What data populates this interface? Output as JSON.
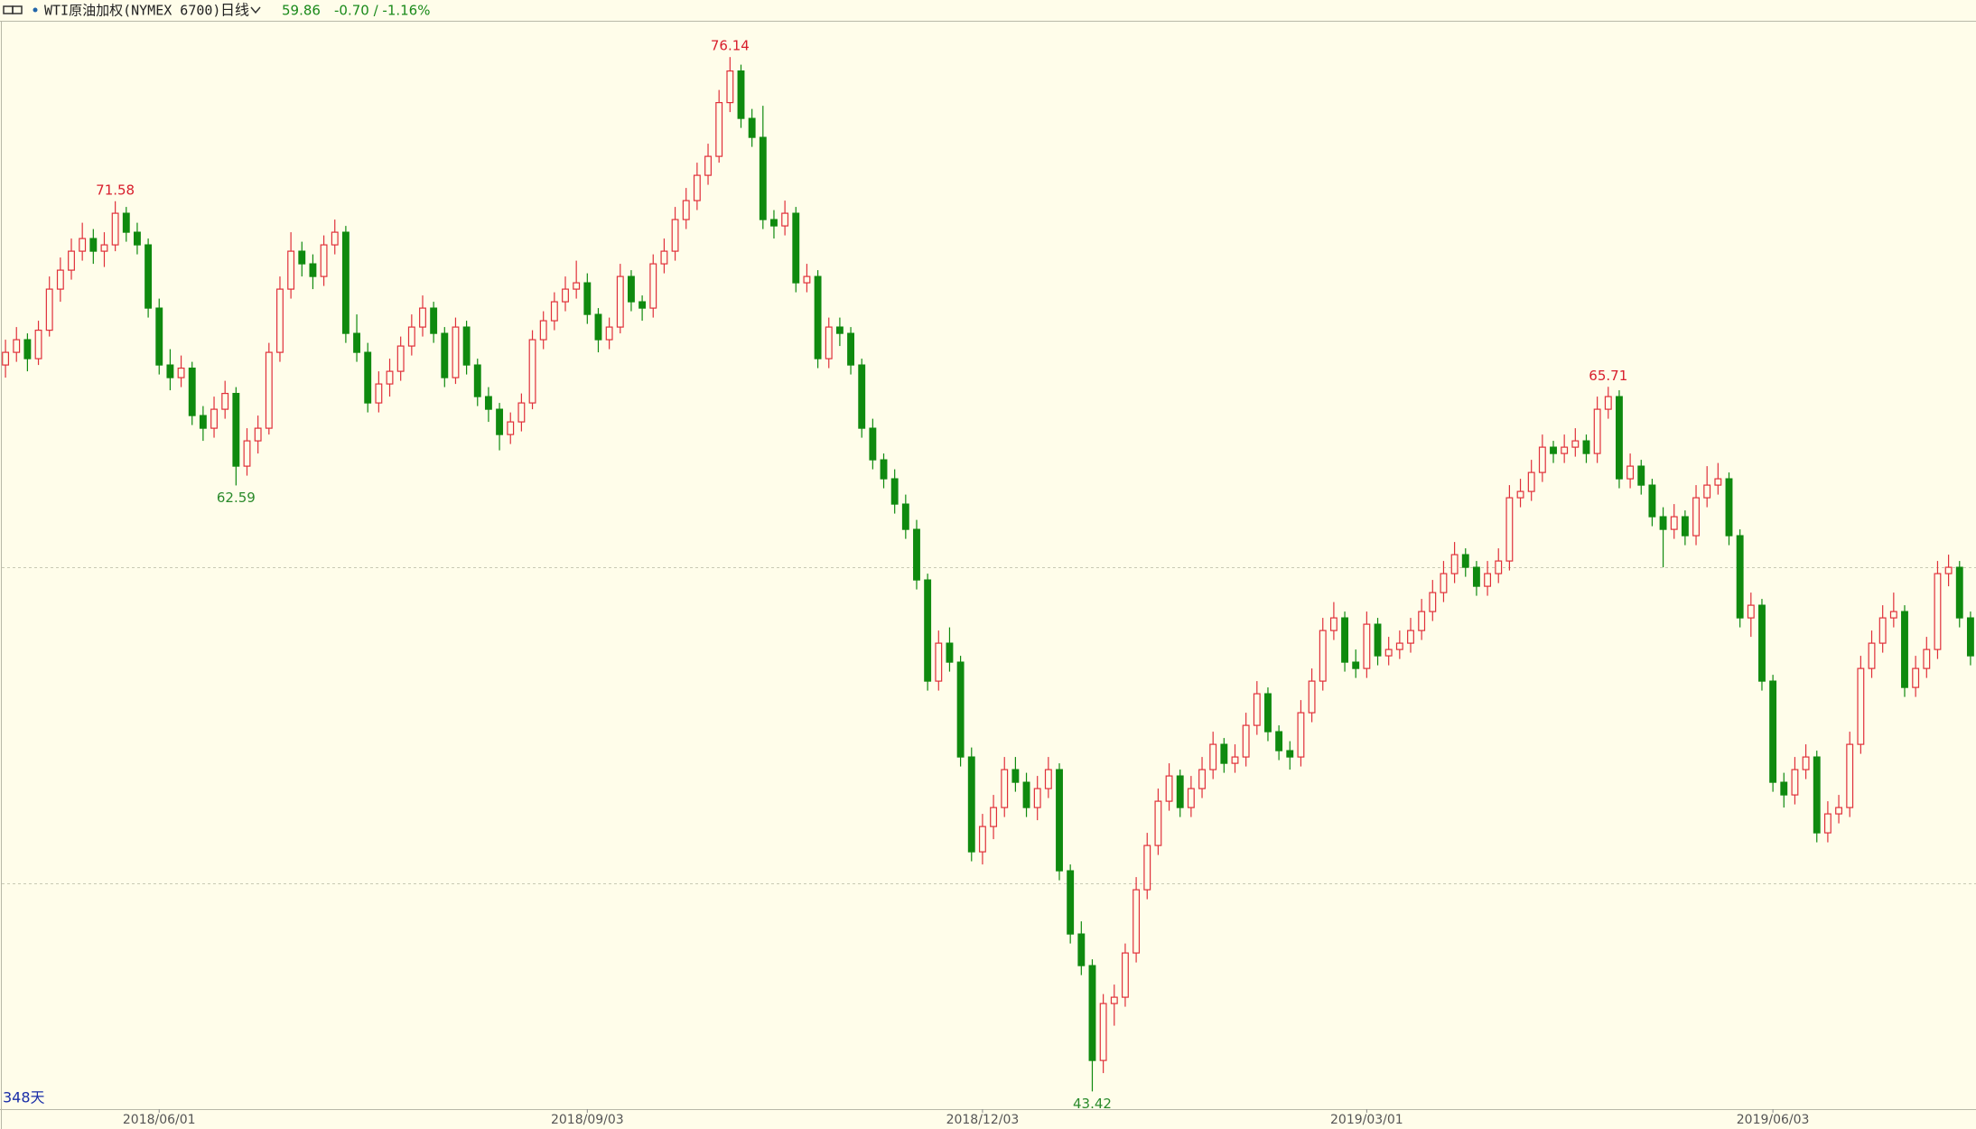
{
  "header": {
    "icon_text": "WTI原油加权(NYMEX 6700)",
    "period": "日线",
    "last": "59.86",
    "change": "-0.70 / -1.16%"
  },
  "chart_data": {
    "type": "candlestick",
    "day_count": "348天",
    "ylim": [
      42.86,
      77.26
    ],
    "gridlines": [
      50,
      60
    ],
    "up_color": "#e0303a",
    "down_color": "#0f8a0f",
    "high_label_color": "#d81e2c",
    "low_label_color": "#2a8a2a",
    "annotated_highs": [
      10,
      66,
      146
    ],
    "annotated_lows": [
      21,
      99
    ],
    "x_labels": [
      {
        "index": 14,
        "label": "2018/06/01"
      },
      {
        "index": 53,
        "label": "2018/09/03"
      },
      {
        "index": 89,
        "label": "2018/12/03"
      },
      {
        "index": 124,
        "label": "2019/03/01"
      },
      {
        "index": 161,
        "label": "2019/06/03"
      }
    ],
    "ohlc": [
      [
        66.4,
        67.2,
        66.0,
        66.8
      ],
      [
        66.8,
        67.6,
        66.5,
        67.2
      ],
      [
        67.2,
        67.4,
        66.2,
        66.6
      ],
      [
        66.6,
        67.8,
        66.4,
        67.5
      ],
      [
        67.5,
        69.2,
        67.3,
        68.8
      ],
      [
        68.8,
        69.8,
        68.4,
        69.4
      ],
      [
        69.4,
        70.4,
        69.1,
        70.0
      ],
      [
        70.0,
        70.9,
        69.7,
        70.4
      ],
      [
        70.4,
        70.7,
        69.6,
        70.0
      ],
      [
        70.0,
        70.6,
        69.5,
        70.2
      ],
      [
        70.2,
        71.58,
        70.0,
        71.2
      ],
      [
        71.2,
        71.4,
        70.3,
        70.6
      ],
      [
        70.6,
        70.9,
        69.9,
        70.2
      ],
      [
        70.2,
        70.4,
        67.9,
        68.2
      ],
      [
        68.2,
        68.5,
        66.1,
        66.4
      ],
      [
        66.4,
        66.9,
        65.6,
        66.0
      ],
      [
        66.0,
        66.7,
        65.7,
        66.3
      ],
      [
        66.3,
        66.5,
        64.5,
        64.8
      ],
      [
        64.8,
        65.1,
        64.0,
        64.4
      ],
      [
        64.4,
        65.4,
        64.1,
        65.0
      ],
      [
        65.0,
        65.9,
        64.7,
        65.5
      ],
      [
        65.5,
        65.7,
        62.59,
        63.2
      ],
      [
        63.2,
        64.4,
        62.9,
        64.0
      ],
      [
        64.0,
        64.8,
        63.6,
        64.4
      ],
      [
        64.4,
        67.1,
        64.2,
        66.8
      ],
      [
        66.8,
        69.2,
        66.5,
        68.8
      ],
      [
        68.8,
        70.6,
        68.5,
        70.0
      ],
      [
        70.0,
        70.3,
        69.2,
        69.6
      ],
      [
        69.6,
        69.9,
        68.8,
        69.2
      ],
      [
        69.2,
        70.5,
        68.9,
        70.2
      ],
      [
        70.2,
        71.0,
        69.9,
        70.6
      ],
      [
        70.6,
        70.8,
        67.1,
        67.4
      ],
      [
        67.4,
        68.0,
        66.5,
        66.8
      ],
      [
        66.8,
        67.1,
        64.9,
        65.2
      ],
      [
        65.2,
        66.2,
        64.9,
        65.8
      ],
      [
        65.8,
        66.6,
        65.4,
        66.2
      ],
      [
        66.2,
        67.3,
        65.9,
        67.0
      ],
      [
        67.0,
        68.0,
        66.7,
        67.6
      ],
      [
        67.6,
        68.6,
        67.3,
        68.2
      ],
      [
        68.2,
        68.4,
        67.1,
        67.4
      ],
      [
        67.4,
        67.6,
        65.7,
        66.0
      ],
      [
        66.0,
        67.9,
        65.8,
        67.6
      ],
      [
        67.6,
        67.8,
        66.1,
        66.4
      ],
      [
        66.4,
        66.6,
        65.1,
        65.4
      ],
      [
        65.4,
        65.7,
        64.6,
        65.0
      ],
      [
        65.0,
        65.2,
        63.7,
        64.2
      ],
      [
        64.2,
        64.9,
        63.9,
        64.6
      ],
      [
        64.6,
        65.5,
        64.3,
        65.2
      ],
      [
        65.2,
        67.5,
        65.0,
        67.2
      ],
      [
        67.2,
        68.1,
        66.9,
        67.8
      ],
      [
        67.8,
        68.7,
        67.5,
        68.4
      ],
      [
        68.4,
        69.2,
        68.1,
        68.8
      ],
      [
        68.8,
        69.7,
        68.5,
        69.0
      ],
      [
        69.0,
        69.3,
        67.7,
        68.0
      ],
      [
        68.0,
        68.2,
        66.8,
        67.2
      ],
      [
        67.2,
        67.9,
        66.9,
        67.6
      ],
      [
        67.6,
        69.6,
        67.4,
        69.2
      ],
      [
        69.2,
        69.4,
        68.1,
        68.4
      ],
      [
        68.4,
        68.6,
        67.8,
        68.2
      ],
      [
        68.2,
        69.9,
        67.9,
        69.6
      ],
      [
        69.6,
        70.4,
        69.3,
        70.0
      ],
      [
        70.0,
        71.4,
        69.7,
        71.0
      ],
      [
        71.0,
        72.0,
        70.7,
        71.6
      ],
      [
        71.6,
        72.8,
        71.3,
        72.4
      ],
      [
        72.4,
        73.4,
        72.1,
        73.0
      ],
      [
        73.0,
        75.1,
        72.8,
        74.7
      ],
      [
        74.7,
        76.14,
        74.4,
        75.7
      ],
      [
        75.7,
        75.9,
        73.9,
        74.2
      ],
      [
        74.2,
        74.5,
        73.3,
        73.6
      ],
      [
        73.6,
        74.6,
        70.7,
        71.0
      ],
      [
        71.0,
        71.3,
        70.4,
        70.8
      ],
      [
        70.8,
        71.6,
        70.5,
        71.2
      ],
      [
        71.2,
        71.4,
        68.7,
        69.0
      ],
      [
        69.0,
        69.6,
        68.7,
        69.2
      ],
      [
        69.2,
        69.4,
        66.3,
        66.6
      ],
      [
        66.6,
        67.9,
        66.3,
        67.6
      ],
      [
        67.6,
        67.9,
        67.0,
        67.4
      ],
      [
        67.4,
        67.6,
        66.1,
        66.4
      ],
      [
        66.4,
        66.6,
        64.1,
        64.4
      ],
      [
        64.4,
        64.7,
        63.1,
        63.4
      ],
      [
        63.4,
        63.6,
        62.5,
        62.8
      ],
      [
        62.8,
        63.1,
        61.7,
        62.0
      ],
      [
        62.0,
        62.3,
        60.9,
        61.2
      ],
      [
        61.2,
        61.5,
        59.3,
        59.6
      ],
      [
        59.6,
        59.8,
        56.1,
        56.4
      ],
      [
        56.4,
        58.0,
        56.1,
        57.6
      ],
      [
        57.6,
        58.1,
        56.7,
        57.0
      ],
      [
        57.0,
        57.2,
        53.7,
        54.0
      ],
      [
        54.0,
        54.3,
        50.7,
        51.0
      ],
      [
        51.0,
        52.2,
        50.6,
        51.8
      ],
      [
        51.8,
        52.8,
        51.4,
        52.4
      ],
      [
        52.4,
        54.0,
        52.1,
        53.6
      ],
      [
        53.6,
        54.0,
        52.9,
        53.2
      ],
      [
        53.2,
        53.5,
        52.1,
        52.4
      ],
      [
        52.4,
        53.4,
        52.0,
        53.0
      ],
      [
        53.0,
        54.0,
        52.7,
        53.6
      ],
      [
        53.6,
        53.8,
        50.1,
        50.4
      ],
      [
        50.4,
        50.6,
        48.1,
        48.4
      ],
      [
        48.4,
        48.8,
        47.1,
        47.4
      ],
      [
        47.4,
        47.6,
        43.42,
        44.4
      ],
      [
        44.4,
        46.5,
        44.0,
        46.2
      ],
      [
        46.2,
        46.8,
        45.5,
        46.4
      ],
      [
        46.4,
        48.1,
        46.1,
        47.8
      ],
      [
        47.8,
        50.2,
        47.5,
        49.8
      ],
      [
        49.8,
        51.6,
        49.5,
        51.2
      ],
      [
        51.2,
        53.0,
        50.9,
        52.6
      ],
      [
        52.6,
        53.8,
        52.3,
        53.4
      ],
      [
        53.4,
        53.6,
        52.1,
        52.4
      ],
      [
        52.4,
        53.4,
        52.1,
        53.0
      ],
      [
        53.0,
        54.0,
        52.7,
        53.6
      ],
      [
        53.6,
        54.8,
        53.3,
        54.4
      ],
      [
        54.4,
        54.6,
        53.5,
        53.8
      ],
      [
        53.8,
        54.4,
        53.5,
        54.0
      ],
      [
        54.0,
        55.4,
        53.7,
        55.0
      ],
      [
        55.0,
        56.4,
        54.7,
        56.0
      ],
      [
        56.0,
        56.2,
        54.5,
        54.8
      ],
      [
        54.8,
        55.0,
        53.9,
        54.2
      ],
      [
        54.2,
        54.5,
        53.6,
        54.0
      ],
      [
        54.0,
        55.8,
        53.7,
        55.4
      ],
      [
        55.4,
        56.8,
        55.1,
        56.4
      ],
      [
        56.4,
        58.4,
        56.1,
        58.0
      ],
      [
        58.0,
        58.9,
        57.7,
        58.4
      ],
      [
        58.4,
        58.6,
        56.7,
        57.0
      ],
      [
        57.0,
        57.4,
        56.5,
        56.8
      ],
      [
        56.8,
        58.6,
        56.5,
        58.2
      ],
      [
        58.2,
        58.4,
        56.9,
        57.2
      ],
      [
        57.2,
        57.8,
        56.9,
        57.4
      ],
      [
        57.4,
        58.0,
        57.1,
        57.6
      ],
      [
        57.6,
        58.4,
        57.3,
        58.0
      ],
      [
        58.0,
        59.0,
        57.7,
        58.6
      ],
      [
        58.6,
        59.6,
        58.3,
        59.2
      ],
      [
        59.2,
        60.2,
        58.9,
        59.8
      ],
      [
        59.8,
        60.8,
        59.5,
        60.4
      ],
      [
        60.4,
        60.6,
        59.7,
        60.0
      ],
      [
        60.0,
        60.2,
        59.1,
        59.4
      ],
      [
        59.4,
        60.2,
        59.1,
        59.8
      ],
      [
        59.8,
        60.6,
        59.5,
        60.2
      ],
      [
        60.2,
        62.6,
        59.9,
        62.2
      ],
      [
        62.2,
        62.8,
        61.9,
        62.4
      ],
      [
        62.4,
        63.4,
        62.1,
        63.0
      ],
      [
        63.0,
        64.2,
        62.7,
        63.8
      ],
      [
        63.8,
        64.0,
        63.3,
        63.6
      ],
      [
        63.6,
        64.2,
        63.3,
        63.8
      ],
      [
        63.8,
        64.4,
        63.5,
        64.0
      ],
      [
        64.0,
        64.2,
        63.3,
        63.6
      ],
      [
        63.6,
        65.4,
        63.3,
        65.0
      ],
      [
        65.0,
        65.71,
        64.7,
        65.4
      ],
      [
        65.4,
        65.6,
        62.5,
        62.8
      ],
      [
        62.8,
        63.6,
        62.5,
        63.2
      ],
      [
        63.2,
        63.4,
        62.3,
        62.6
      ],
      [
        62.6,
        62.8,
        61.3,
        61.6
      ],
      [
        61.6,
        61.9,
        60.0,
        61.2
      ],
      [
        61.2,
        62.0,
        60.9,
        61.6
      ],
      [
        61.6,
        61.8,
        60.7,
        61.0
      ],
      [
        61.0,
        62.6,
        60.7,
        62.2
      ],
      [
        62.2,
        63.2,
        61.9,
        62.6
      ],
      [
        62.6,
        63.3,
        62.3,
        62.8
      ],
      [
        62.8,
        63.0,
        60.7,
        61.0
      ],
      [
        61.0,
        61.2,
        58.1,
        58.4
      ],
      [
        58.4,
        59.2,
        57.8,
        58.8
      ],
      [
        58.8,
        59.0,
        56.1,
        56.4
      ],
      [
        56.4,
        56.6,
        52.9,
        53.2
      ],
      [
        53.2,
        53.5,
        52.4,
        52.8
      ],
      [
        52.8,
        54.0,
        52.5,
        53.6
      ],
      [
        53.6,
        54.4,
        53.3,
        54.0
      ],
      [
        54.0,
        54.2,
        51.3,
        51.6
      ],
      [
        51.6,
        52.6,
        51.3,
        52.2
      ],
      [
        52.2,
        52.8,
        51.9,
        52.4
      ],
      [
        52.4,
        54.8,
        52.1,
        54.4
      ],
      [
        54.4,
        57.2,
        54.1,
        56.8
      ],
      [
        56.8,
        58.0,
        56.5,
        57.6
      ],
      [
        57.6,
        58.8,
        57.3,
        58.4
      ],
      [
        58.4,
        59.2,
        58.1,
        58.6
      ],
      [
        58.6,
        58.8,
        55.9,
        56.2
      ],
      [
        56.2,
        57.2,
        55.9,
        56.8
      ],
      [
        56.8,
        57.8,
        56.5,
        57.4
      ],
      [
        57.4,
        60.2,
        57.1,
        59.8
      ],
      [
        59.8,
        60.4,
        59.4,
        60.0
      ],
      [
        60.0,
        60.2,
        58.1,
        58.4
      ],
      [
        58.4,
        58.6,
        56.9,
        57.2
      ]
    ]
  }
}
